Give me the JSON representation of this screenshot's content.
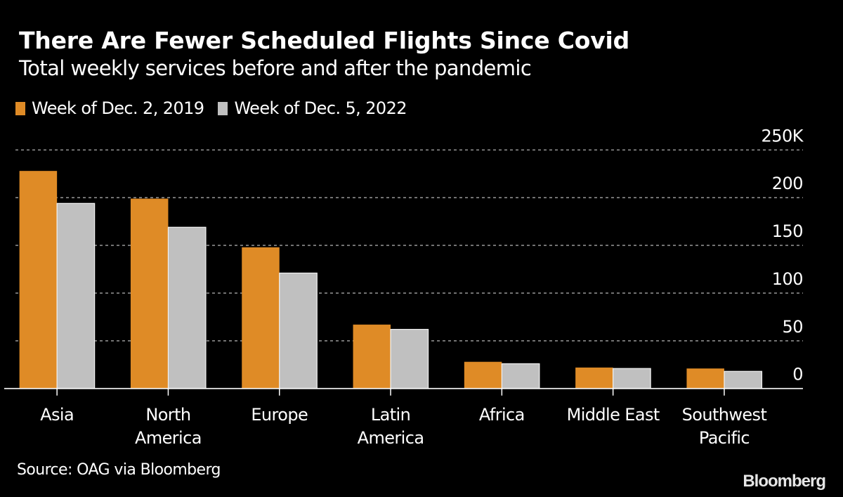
{
  "header": {
    "title": "There Are Fewer Scheduled Flights Since Covid",
    "subtitle": "Total weekly services before and after the pandemic"
  },
  "legend": [
    {
      "label": "Week of Dec. 2, 2019",
      "color": "#df8b26"
    },
    {
      "label": "Week of Dec. 5, 2022",
      "color": "#c0c0c0"
    }
  ],
  "footer": {
    "source": "Source: OAG via Bloomberg",
    "logo": "Bloomberg"
  },
  "chart_data": {
    "type": "bar",
    "title": "There Are Fewer Scheduled Flights Since Covid",
    "subtitle": "Total weekly services before and after the pandemic",
    "xlabel": "",
    "ylabel": "",
    "categories": [
      [
        "Asia"
      ],
      [
        "North",
        "America"
      ],
      [
        "Europe"
      ],
      [
        "Latin",
        "America"
      ],
      [
        "Africa"
      ],
      [
        "Middle East"
      ],
      [
        "Southwest",
        "Pacific"
      ]
    ],
    "series": [
      {
        "name": "Week of Dec. 2, 2019",
        "color": "#df8b26",
        "values": [
          228,
          199,
          148,
          67,
          28,
          22,
          21
        ]
      },
      {
        "name": "Week of Dec. 5, 2022",
        "color": "#c0c0c0",
        "values": [
          194,
          169,
          121,
          62,
          26,
          21,
          18
        ]
      }
    ],
    "units": "thousands of weekly services",
    "ylim": [
      0,
      250
    ],
    "yticks": [
      0,
      50,
      100,
      150,
      200,
      250
    ],
    "ytick_labels": [
      "0",
      "50",
      "100",
      "150",
      "200",
      "250K"
    ],
    "yaxis_side": "right",
    "grid": true,
    "legend_position": "top-left"
  }
}
